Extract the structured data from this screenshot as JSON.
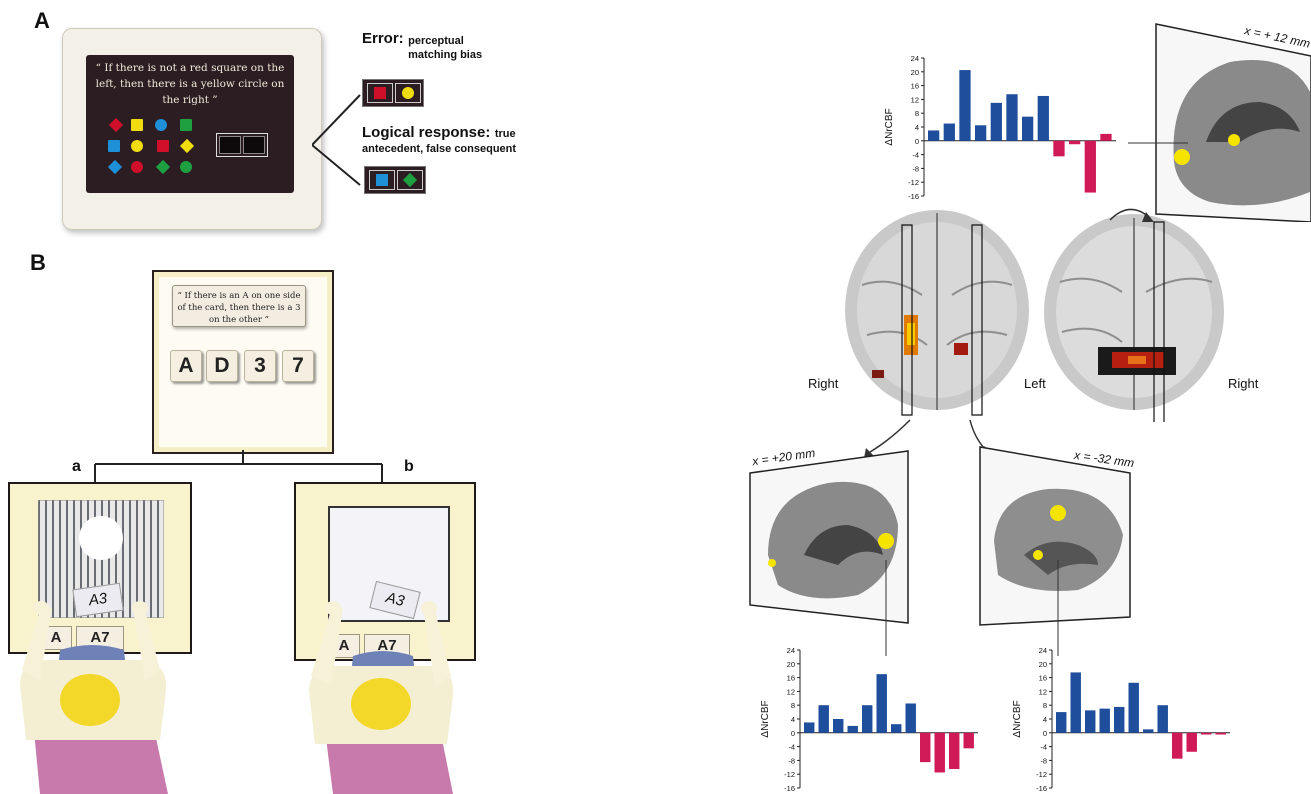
{
  "panel_a": {
    "letter": "A",
    "quote": "“ If there is not a red square on the left, then there is a yellow circle on the right ”",
    "error_title": "Error:",
    "error_desc": "perceptual matching bias",
    "logical_title": "Logical response:",
    "logical_desc": "true antecedent, false consequent",
    "colors": {
      "red": "#d0102a",
      "yellow": "#f1dc10",
      "blue": "#1e90d8",
      "green": "#1ea040",
      "screen": "#2b1d22"
    }
  },
  "panel_b": {
    "letter": "B",
    "quote": "“ If there is an A on one side of the card, then there is a 3 on the other ”",
    "tiles": [
      "A",
      "D",
      "3",
      "7"
    ],
    "sub_a_label": "a",
    "sub_b_label": "b",
    "held_card": "A3",
    "table_card_left": "A",
    "table_card_right": "A7"
  },
  "brain": {
    "left_view_label_right": "Right",
    "right_view_label_left": "Left",
    "right_view_label_right": "Right",
    "top_slice_coord": "x = + 12 mm",
    "left_slice_coord": "x = +20 mm",
    "right_slice_coord": "x = -32 mm"
  },
  "chart_data": [
    {
      "type": "bar",
      "ylabel": "ΔNrCBF",
      "ylim": [
        -16,
        24
      ],
      "yticks": [
        "24",
        "20",
        "16",
        "12",
        "8",
        "4",
        "0",
        "-4",
        "-8",
        "-12",
        "-16"
      ],
      "values": [
        3,
        5,
        20.5,
        4.5,
        11,
        13.5,
        7,
        13,
        -4.5,
        -1,
        -15,
        2
      ],
      "colors": [
        "#1f4e9c",
        "#1f4e9c",
        "#1f4e9c",
        "#1f4e9c",
        "#1f4e9c",
        "#1f4e9c",
        "#1f4e9c",
        "#1f4e9c",
        "#d01a58",
        "#d01a58",
        "#d01a58",
        "#d01a58"
      ]
    },
    {
      "type": "bar",
      "ylabel": "ΔNrCBF",
      "ylim": [
        -16,
        24
      ],
      "yticks": [
        "24",
        "20",
        "16",
        "12",
        "8",
        "4",
        "0",
        "-4",
        "-8",
        "-12",
        "-16"
      ],
      "values": [
        3,
        8,
        4,
        2,
        8,
        17,
        2.5,
        8.5,
        -8.5,
        -11.5,
        -10.5,
        -4.5
      ],
      "colors": [
        "#1f4e9c",
        "#1f4e9c",
        "#1f4e9c",
        "#1f4e9c",
        "#1f4e9c",
        "#1f4e9c",
        "#1f4e9c",
        "#1f4e9c",
        "#d01a58",
        "#d01a58",
        "#d01a58",
        "#d01a58"
      ]
    },
    {
      "type": "bar",
      "ylabel": "ΔNrCBF",
      "ylim": [
        -16,
        24
      ],
      "yticks": [
        "24",
        "20",
        "16",
        "12",
        "8",
        "4",
        "0",
        "-4",
        "-8",
        "-12",
        "-16"
      ],
      "values": [
        6,
        17.5,
        6.5,
        7,
        7.5,
        14.5,
        1,
        8,
        -7.5,
        -5.5,
        -0.5,
        -0.5
      ],
      "colors": [
        "#1f4e9c",
        "#1f4e9c",
        "#1f4e9c",
        "#1f4e9c",
        "#1f4e9c",
        "#1f4e9c",
        "#1f4e9c",
        "#1f4e9c",
        "#d01a58",
        "#d01a58",
        "#d01a58",
        "#d01a58"
      ]
    }
  ]
}
